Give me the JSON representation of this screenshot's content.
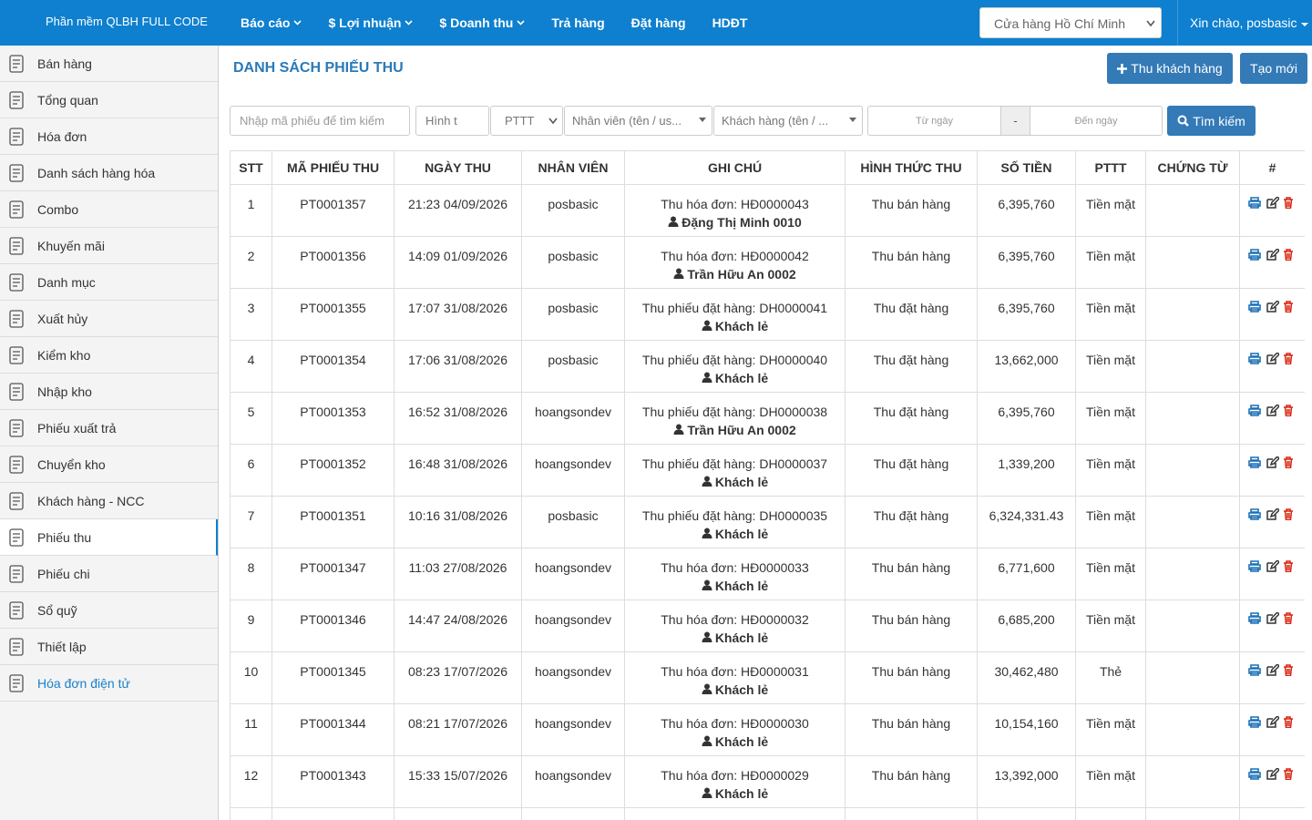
{
  "navbar": {
    "brand": "Phần mềm QLBH FULL CODE",
    "menu": [
      {
        "label": "Báo cáo",
        "dropdown": true
      },
      {
        "label": "$ Lợi nhuận",
        "dropdown": true
      },
      {
        "label": "$ Doanh thu",
        "dropdown": true
      },
      {
        "label": "Trả hàng",
        "dropdown": false
      },
      {
        "label": "Đặt hàng",
        "dropdown": false
      },
      {
        "label": "HDĐT",
        "dropdown": false
      }
    ],
    "store": "Cửa hàng Hồ Chí Minh",
    "greeting": "Xin chào, posbasic"
  },
  "sidebar": {
    "items": [
      "Bán hàng",
      "Tổng quan",
      "Hóa đơn",
      "Danh sách hàng hóa",
      "Combo",
      "Khuyến mãi",
      "Danh mục",
      "Xuất hủy",
      "Kiểm kho",
      "Nhập kho",
      "Phiếu xuất trả",
      "Chuyển kho",
      "Khách hàng - NCC",
      "Phiếu thu",
      "Phiếu chi",
      "Sổ quỹ",
      "Thiết lập",
      "Hóa đơn điện tử"
    ],
    "active": "Phiếu thu"
  },
  "page": {
    "title": "DANH SÁCH PHIẾU THU",
    "collect_button": "Thu khách hàng",
    "new_button": "Tạo mới"
  },
  "filters": {
    "code": "Nhập mã phiếu để tìm kiếm",
    "type": "Hình t",
    "method": "PTTT",
    "employee": "Nhân viên (tên / us...",
    "customer": "Khách hàng (tên / ...",
    "from": "Từ ngày",
    "separator": "-",
    "to": "Đến ngày",
    "search": "Tìm kiếm"
  },
  "table": {
    "headers": [
      "STT",
      "MÃ PHIẾU THU",
      "NGÀY THU",
      "NHÂN VIÊN",
      "GHI CHÚ",
      "HÌNH THỨC THU",
      "SỐ TIỀN",
      "PTTT",
      "CHỨNG TỪ",
      "#"
    ],
    "rows": [
      {
        "stt": "1",
        "code": "PT0001357",
        "date": "21:23 04/09/2026",
        "employee": "posbasic",
        "note": "Thu hóa đơn: HĐ0000043",
        "customer": "Đặng Thị Minh 0010",
        "type": "Thu bán hàng",
        "amount": "6,395,760",
        "method": "Tiền mặt"
      },
      {
        "stt": "2",
        "code": "PT0001356",
        "date": "14:09 01/09/2026",
        "employee": "posbasic",
        "note": "Thu hóa đơn: HĐ0000042",
        "customer": "Trần Hữu An 0002",
        "type": "Thu bán hàng",
        "amount": "6,395,760",
        "method": "Tiền mặt"
      },
      {
        "stt": "3",
        "code": "PT0001355",
        "date": "17:07 31/08/2026",
        "employee": "posbasic",
        "note": "Thu phiếu đặt hàng: DH0000041",
        "customer": "Khách lẻ",
        "type": "Thu đặt hàng",
        "amount": "6,395,760",
        "method": "Tiền mặt"
      },
      {
        "stt": "4",
        "code": "PT0001354",
        "date": "17:06 31/08/2026",
        "employee": "posbasic",
        "note": "Thu phiếu đặt hàng: DH0000040",
        "customer": "Khách lẻ",
        "type": "Thu đặt hàng",
        "amount": "13,662,000",
        "method": "Tiền mặt"
      },
      {
        "stt": "5",
        "code": "PT0001353",
        "date": "16:52 31/08/2026",
        "employee": "hoangsondev",
        "note": "Thu phiếu đặt hàng: DH0000038",
        "customer": "Trần Hữu An 0002",
        "type": "Thu đặt hàng",
        "amount": "6,395,760",
        "method": "Tiền mặt"
      },
      {
        "stt": "6",
        "code": "PT0001352",
        "date": "16:48 31/08/2026",
        "employee": "hoangsondev",
        "note": "Thu phiếu đặt hàng: DH0000037",
        "customer": "Khách lẻ",
        "type": "Thu đặt hàng",
        "amount": "1,339,200",
        "method": "Tiền mặt"
      },
      {
        "stt": "7",
        "code": "PT0001351",
        "date": "10:16 31/08/2026",
        "employee": "posbasic",
        "note": "Thu phiếu đặt hàng: DH0000035",
        "customer": "Khách lẻ",
        "type": "Thu đặt hàng",
        "amount": "6,324,331.43",
        "method": "Tiền mặt"
      },
      {
        "stt": "8",
        "code": "PT0001347",
        "date": "11:03 27/08/2026",
        "employee": "hoangsondev",
        "note": "Thu hóa đơn: HĐ0000033",
        "customer": "Khách lẻ",
        "type": "Thu bán hàng",
        "amount": "6,771,600",
        "method": "Tiền mặt"
      },
      {
        "stt": "9",
        "code": "PT0001346",
        "date": "14:47 24/08/2026",
        "employee": "hoangsondev",
        "note": "Thu hóa đơn: HĐ0000032",
        "customer": "Khách lẻ",
        "type": "Thu bán hàng",
        "amount": "6,685,200",
        "method": "Tiền mặt"
      },
      {
        "stt": "10",
        "code": "PT0001345",
        "date": "08:23 17/07/2026",
        "employee": "hoangsondev",
        "note": "Thu hóa đơn: HĐ0000031",
        "customer": "Khách lẻ",
        "type": "Thu bán hàng",
        "amount": "30,462,480",
        "method": "Thẻ"
      },
      {
        "stt": "11",
        "code": "PT0001344",
        "date": "08:21 17/07/2026",
        "employee": "hoangsondev",
        "note": "Thu hóa đơn: HĐ0000030",
        "customer": "Khách lẻ",
        "type": "Thu bán hàng",
        "amount": "10,154,160",
        "method": "Tiền mặt"
      },
      {
        "stt": "12",
        "code": "PT0001343",
        "date": "15:33 15/07/2026",
        "employee": "hoangsondev",
        "note": "Thu hóa đơn: HĐ0000029",
        "customer": "Khách lẻ",
        "type": "Thu bán hàng",
        "amount": "13,392,000",
        "method": "Tiền mặt"
      }
    ]
  }
}
